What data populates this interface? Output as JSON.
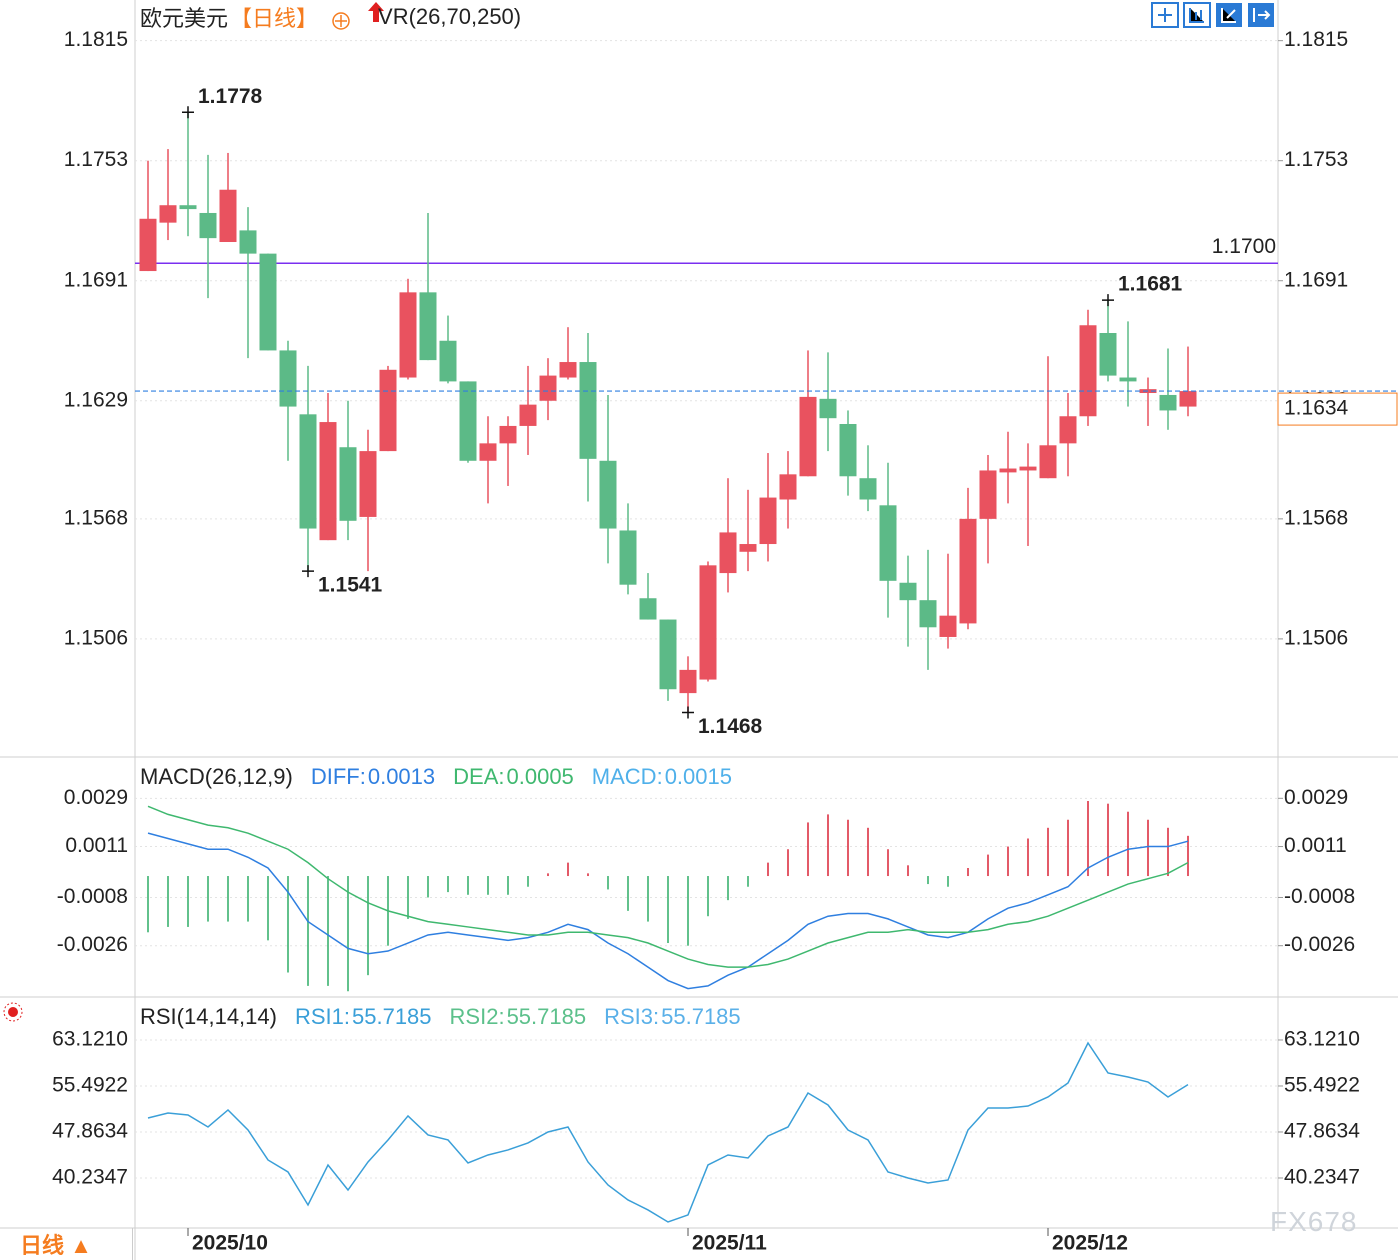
{
  "chart_data": [
    {
      "type": "candlestick",
      "title": "欧元美元",
      "subtitle": "【日线】",
      "indicator": "VR(26,70,250)",
      "categories": [
        null,
        null,
        "2025/10",
        null,
        null,
        null,
        null,
        null,
        null,
        null,
        null,
        null,
        null,
        null,
        null,
        null,
        null,
        null,
        null,
        null,
        null,
        null,
        null,
        null,
        null,
        null,
        null,
        "2025/11",
        null,
        null,
        null,
        null,
        null,
        null,
        null,
        null,
        null,
        null,
        null,
        null,
        null,
        null,
        null,
        null,
        null,
        "2025/12",
        null,
        null,
        null,
        null,
        null,
        null,
        null
      ],
      "open": [
        1.1696,
        1.1721,
        1.173,
        1.1726,
        1.1711,
        1.1717,
        1.1705,
        1.1655,
        1.1622,
        1.1557,
        1.1605,
        1.1569,
        1.1603,
        1.1641,
        1.1685,
        1.166,
        1.1639,
        1.1598,
        1.1607,
        1.1616,
        1.1629,
        1.1641,
        1.1649,
        1.1598,
        1.1562,
        1.1527,
        1.1516,
        1.1478,
        1.1485,
        1.154,
        1.1551,
        1.1555,
        1.1578,
        1.159,
        1.163,
        1.1617,
        1.1589,
        1.1575,
        1.1535,
        1.1526,
        1.1507,
        1.1514,
        1.1568,
        1.1592,
        1.1593,
        1.1589,
        1.1607,
        1.1621,
        1.1664,
        1.1641,
        1.1633,
        1.1632,
        1.1626
      ],
      "high": [
        1.1753,
        1.1759,
        1.1778,
        1.1756,
        1.1757,
        1.1729,
        1.1705,
        1.166,
        1.1647,
        1.1633,
        1.1629,
        1.1614,
        1.1647,
        1.1692,
        1.1726,
        1.1673,
        1.1639,
        1.1621,
        1.1621,
        1.1647,
        1.1651,
        1.1667,
        1.1664,
        1.1632,
        1.1576,
        1.154,
        1.1516,
        1.1497,
        1.1546,
        1.1589,
        1.1583,
        1.1602,
        1.1603,
        1.1655,
        1.1654,
        1.1624,
        1.1606,
        1.1597,
        1.1549,
        1.1552,
        1.155,
        1.1584,
        1.1601,
        1.1613,
        1.1607,
        1.1652,
        1.1633,
        1.1676,
        1.1681,
        1.167,
        1.1641,
        1.1656,
        1.1657
      ],
      "low": [
        1.1696,
        1.1712,
        1.1714,
        1.1682,
        1.1711,
        1.1651,
        1.1655,
        1.1598,
        1.1541,
        1.1557,
        1.1557,
        1.1541,
        1.1603,
        1.164,
        1.165,
        1.1638,
        1.1597,
        1.1576,
        1.1585,
        1.1601,
        1.1619,
        1.164,
        1.1577,
        1.1545,
        1.1529,
        1.1516,
        1.1474,
        1.1468,
        1.1484,
        1.153,
        1.1541,
        1.1546,
        1.1563,
        1.159,
        1.1603,
        1.158,
        1.1572,
        1.1517,
        1.1502,
        1.149,
        1.1501,
        1.1511,
        1.1545,
        1.1576,
        1.1554,
        1.1589,
        1.159,
        1.1616,
        1.1639,
        1.1626,
        1.1616,
        1.1614,
        1.1621
      ],
      "close": [
        1.1723,
        1.173,
        1.1728,
        1.1713,
        1.1738,
        1.1705,
        1.1655,
        1.1626,
        1.1563,
        1.1618,
        1.1567,
        1.1603,
        1.1645,
        1.1685,
        1.165,
        1.1639,
        1.1598,
        1.1607,
        1.1616,
        1.1627,
        1.1642,
        1.1649,
        1.1599,
        1.1563,
        1.1534,
        1.1516,
        1.148,
        1.149,
        1.1544,
        1.1561,
        1.1555,
        1.1579,
        1.1591,
        1.1631,
        1.162,
        1.159,
        1.1578,
        1.1536,
        1.1526,
        1.1512,
        1.1518,
        1.1568,
        1.1593,
        1.1594,
        1.1595,
        1.1606,
        1.1621,
        1.1668,
        1.1642,
        1.1639,
        1.1635,
        1.1624,
        1.1634
      ],
      "up_color": "#e9525f",
      "down_color": "#5cba87",
      "last_price_color": "#f57c1f",
      "ylim": [
        1.1445,
        1.1836
      ],
      "yticks": [
        1.1506,
        1.1568,
        1.1629,
        1.1691,
        1.1753,
        1.1815
      ],
      "grid": true,
      "hline": {
        "value": 1.17,
        "label": "1.1700",
        "color": "#7a2ff0"
      }
    },
    {
      "type": "macd",
      "title": "MACD(26,12,9)",
      "series": [
        {
          "name": "DIFF:",
          "color": "#2f7fe0",
          "values": [
            0.0016,
            0.0014,
            0.0012,
            0.001,
            0.001,
            0.0007,
            0.0003,
            -0.0006,
            -0.0017,
            -0.0022,
            -0.0027,
            -0.0029,
            -0.0028,
            -0.0025,
            -0.0022,
            -0.0021,
            -0.0022,
            -0.0023,
            -0.0024,
            -0.0023,
            -0.0021,
            -0.0018,
            -0.002,
            -0.0025,
            -0.0029,
            -0.0034,
            -0.0039,
            -0.0042,
            -0.0041,
            -0.0037,
            -0.0034,
            -0.0029,
            -0.0024,
            -0.0018,
            -0.0015,
            -0.0014,
            -0.0014,
            -0.0016,
            -0.0019,
            -0.0022,
            -0.0023,
            -0.0021,
            -0.0016,
            -0.0012,
            -0.001,
            -0.0007,
            -0.0004,
            0.0003,
            0.0007,
            0.001,
            0.0011,
            0.0011,
            0.0013
          ]
        },
        {
          "name": "DEA:",
          "color": "#3fb86f",
          "values": [
            0.0026,
            0.0023,
            0.0021,
            0.0019,
            0.0018,
            0.0016,
            0.0013,
            0.001,
            0.0005,
            -0.0001,
            -0.0006,
            -0.001,
            -0.0013,
            -0.0015,
            -0.0017,
            -0.0018,
            -0.0019,
            -0.002,
            -0.0021,
            -0.0022,
            -0.0022,
            -0.0021,
            -0.0021,
            -0.0022,
            -0.0023,
            -0.0025,
            -0.0028,
            -0.0031,
            -0.0033,
            -0.0034,
            -0.0034,
            -0.0033,
            -0.0031,
            -0.0028,
            -0.0025,
            -0.0023,
            -0.0021,
            -0.0021,
            -0.002,
            -0.0021,
            -0.0021,
            -0.0021,
            -0.002,
            -0.0018,
            -0.0017,
            -0.0015,
            -0.0012,
            -0.0009,
            -0.0006,
            -0.0003,
            -0.0001,
            0.0001,
            0.0005
          ]
        },
        {
          "name": "MACD:",
          "color": "#4fb0ea",
          "up_color": "#e35a68",
          "down_color": "#62c18c",
          "values": [
            -0.0021,
            -0.0019,
            -0.0019,
            -0.0017,
            -0.0017,
            -0.0017,
            -0.0024,
            -0.0036,
            -0.0041,
            -0.0041,
            -0.0043,
            -0.0037,
            -0.0026,
            -0.0016,
            -0.0008,
            -0.0006,
            -0.0007,
            -0.0007,
            -0.0007,
            -0.0004,
            0.0001,
            0.0005,
            0.0001,
            -0.0005,
            -0.0013,
            -0.0017,
            -0.0025,
            -0.0026,
            -0.0015,
            -0.0009,
            -0.0004,
            0.0005,
            0.001,
            0.002,
            0.0023,
            0.0021,
            0.0018,
            0.001,
            0.0004,
            -0.0003,
            -0.0004,
            0.0003,
            0.0008,
            0.0011,
            0.0014,
            0.0018,
            0.0021,
            0.0028,
            0.0027,
            0.0024,
            0.0021,
            0.0018,
            0.0015
          ]
        }
      ],
      "ylim": [
        -0.00444,
        0.00433
      ],
      "yticks": [
        -0.0026,
        -0.0008,
        0.0011,
        0.0029
      ],
      "grid": true
    },
    {
      "type": "line",
      "title": "RSI(14,14,14)",
      "series": [
        {
          "name": "RSI1:",
          "color": "#3a9fd8",
          "values": [
            50.18,
            51.01,
            50.68,
            48.69,
            51.51,
            48.19,
            43.22,
            41.23,
            35.76,
            42.39,
            38.24,
            42.89,
            46.54,
            50.52,
            47.37,
            46.54,
            42.72,
            44.05,
            44.88,
            46.04,
            47.86,
            48.69,
            42.89,
            39.07,
            36.59,
            34.93,
            32.94,
            34.1,
            42.39,
            44.05,
            43.55,
            47.2,
            48.69,
            54.33,
            52.34,
            48.19,
            46.54,
            41.23,
            40.23,
            39.4,
            39.9,
            48.19,
            51.84,
            51.84,
            52.17,
            53.67,
            55.99,
            62.62,
            57.65,
            56.98,
            56.15,
            53.67,
            55.7185
          ]
        },
        {
          "name": "RSI2:",
          "color": "#5cc08b",
          "value": 55.7185
        },
        {
          "name": "RSI3:",
          "color": "#5ab0e8",
          "value": 55.7185
        }
      ],
      "ylim": [
        32.27,
        69.75
      ],
      "yticks": [
        {
          "value": 40.2347,
          "label": "40.2347"
        },
        {
          "value": 47.8634,
          "label": "47.8634"
        },
        {
          "value": 55.4922,
          "label": "55.4922"
        },
        {
          "value": 63.121,
          "label": "63.1210"
        }
      ],
      "grid": true
    }
  ],
  "footer": {
    "period_button": "日线 ▲",
    "watermark": "FX678"
  }
}
